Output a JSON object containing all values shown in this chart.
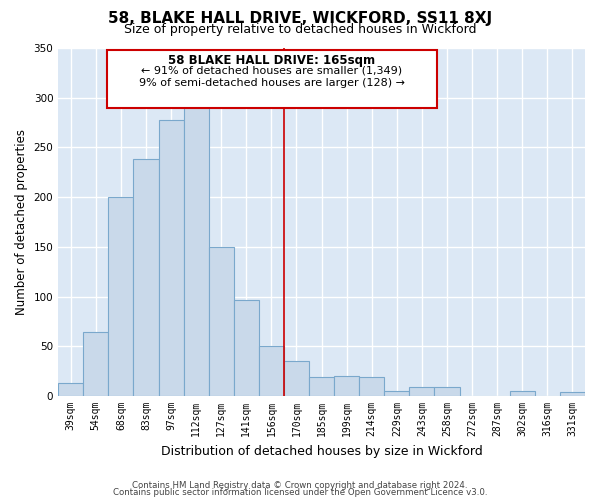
{
  "title": "58, BLAKE HALL DRIVE, WICKFORD, SS11 8XJ",
  "subtitle": "Size of property relative to detached houses in Wickford",
  "xlabel": "Distribution of detached houses by size in Wickford",
  "ylabel": "Number of detached properties",
  "categories": [
    "39sqm",
    "54sqm",
    "68sqm",
    "83sqm",
    "97sqm",
    "112sqm",
    "127sqm",
    "141sqm",
    "156sqm",
    "170sqm",
    "185sqm",
    "199sqm",
    "214sqm",
    "229sqm",
    "243sqm",
    "258sqm",
    "272sqm",
    "287sqm",
    "302sqm",
    "316sqm",
    "331sqm"
  ],
  "values": [
    13,
    64,
    200,
    238,
    278,
    293,
    150,
    97,
    50,
    35,
    19,
    20,
    19,
    5,
    9,
    9,
    0,
    0,
    5,
    0,
    4
  ],
  "bar_color": "#c9d9ea",
  "bar_edge_color": "#7aa8cc",
  "highlight_line_color": "#cc0000",
  "annotation_title": "58 BLAKE HALL DRIVE: 165sqm",
  "annotation_line1": "← 91% of detached houses are smaller (1,349)",
  "annotation_line2": "9% of semi-detached houses are larger (128) →",
  "annotation_box_color": "#ffffff",
  "annotation_box_edge": "#cc0000",
  "ylim": [
    0,
    350
  ],
  "yticks": [
    0,
    50,
    100,
    150,
    200,
    250,
    300,
    350
  ],
  "footer_line1": "Contains HM Land Registry data © Crown copyright and database right 2024.",
  "footer_line2": "Contains public sector information licensed under the Open Government Licence v3.0.",
  "bg_color": "#dce8f5",
  "grid_color": "#ffffff",
  "title_fontsize": 11,
  "subtitle_fontsize": 9
}
